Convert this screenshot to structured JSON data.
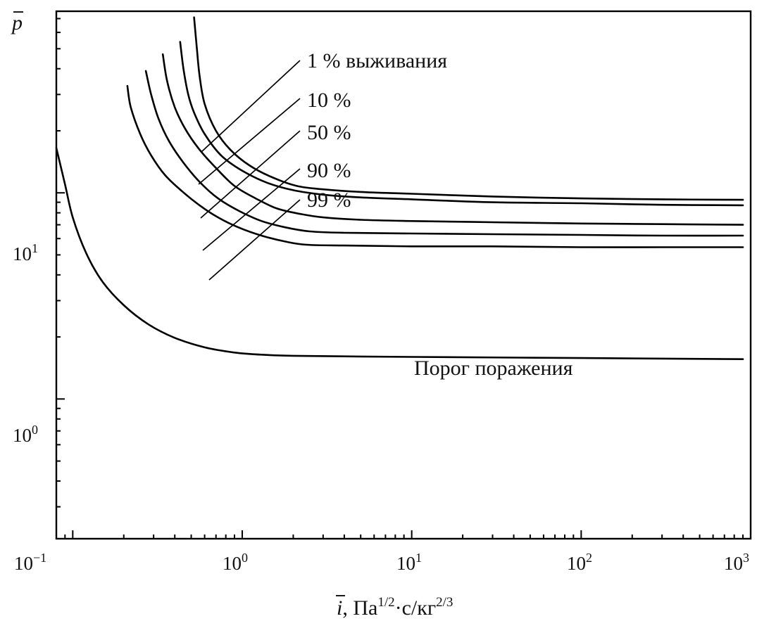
{
  "chart_data": {
    "type": "line",
    "x_scale": "log",
    "y_scale": "log",
    "xlim": [
      0.08,
      1000
    ],
    "ylim": [
      0.21,
      76
    ],
    "grid": false,
    "legend": "none",
    "ylabel_symbol": "p",
    "xlabel_symbol": "i",
    "xlabel_units": ", Па",
    "xlabel_sup1": "1/2",
    "xlabel_mid": "·с/кг",
    "xlabel_sup2": "2/3",
    "x_ticks": [
      {
        "value": 0.1,
        "base": "10",
        "exp": "−1"
      },
      {
        "value": 1,
        "base": "10",
        "exp": "0"
      },
      {
        "value": 10,
        "base": "10",
        "exp": "1"
      },
      {
        "value": 100,
        "base": "10",
        "exp": "2"
      },
      {
        "value": 1000,
        "base": "10",
        "exp": "3"
      }
    ],
    "y_ticks": [
      {
        "value": 1,
        "base": "10",
        "exp": "0"
      },
      {
        "value": 10,
        "base": "10",
        "exp": "1"
      }
    ],
    "series": [
      {
        "name": "1 % выживания",
        "x": [
          0.52,
          0.54,
          0.56,
          0.6,
          0.7,
          0.85,
          1.1,
          1.5,
          2.1,
          3,
          5,
          10,
          30,
          100,
          300,
          900
        ],
        "y": [
          71,
          50,
          37,
          27,
          20,
          16.2,
          13.6,
          11.9,
          10.8,
          10.4,
          10.1,
          9.9,
          9.6,
          9.4,
          9.3,
          9.25
        ]
      },
      {
        "name": "10 %",
        "x": [
          0.43,
          0.45,
          0.48,
          0.52,
          0.6,
          0.75,
          1,
          1.4,
          2,
          3,
          5,
          10,
          30,
          100,
          300,
          900
        ],
        "y": [
          54,
          40,
          30,
          24.5,
          19.3,
          15.2,
          12.8,
          11.2,
          10.3,
          9.8,
          9.5,
          9.3,
          9.0,
          8.9,
          8.75,
          8.7
        ]
      },
      {
        "name": "50 %",
        "x": [
          0.34,
          0.36,
          0.4,
          0.46,
          0.55,
          0.7,
          0.9,
          1.2,
          1.6,
          2.2,
          3,
          5,
          10,
          30,
          100,
          300,
          900
        ],
        "y": [
          47,
          35,
          26,
          20.5,
          16.5,
          13.2,
          10.8,
          9.4,
          8.4,
          7.9,
          7.6,
          7.4,
          7.3,
          7.2,
          7.1,
          7.05,
          7.0
        ]
      },
      {
        "name": "90 %",
        "x": [
          0.27,
          0.29,
          0.32,
          0.37,
          0.45,
          0.56,
          0.72,
          0.95,
          1.3,
          1.8,
          2.5,
          4,
          10,
          30,
          100,
          300,
          900
        ],
        "y": [
          39,
          30,
          23,
          17.8,
          14,
          11.3,
          9.4,
          8.2,
          7.3,
          6.8,
          6.5,
          6.4,
          6.35,
          6.3,
          6.25,
          6.2,
          6.2
        ]
      },
      {
        "name": "99 %",
        "x": [
          0.21,
          0.22,
          0.25,
          0.29,
          0.35,
          0.44,
          0.56,
          0.72,
          0.95,
          1.3,
          1.8,
          2.4,
          4,
          10,
          30,
          100,
          300,
          900
        ],
        "y": [
          33,
          26,
          19.3,
          15.2,
          12.2,
          10.2,
          8.7,
          7.6,
          6.8,
          6.2,
          5.8,
          5.6,
          5.55,
          5.5,
          5.5,
          5.45,
          5.45,
          5.45
        ]
      },
      {
        "name": "Порог поражения",
        "x": [
          0.08,
          0.09,
          0.1,
          0.12,
          0.15,
          0.2,
          0.28,
          0.4,
          0.6,
          0.9,
          1.3,
          2,
          4,
          10,
          100,
          900
        ],
        "y": [
          16.5,
          11,
          7.6,
          5.1,
          3.7,
          2.85,
          2.3,
          1.98,
          1.78,
          1.68,
          1.64,
          1.62,
          1.61,
          1.6,
          1.58,
          1.56
        ]
      }
    ]
  }
}
